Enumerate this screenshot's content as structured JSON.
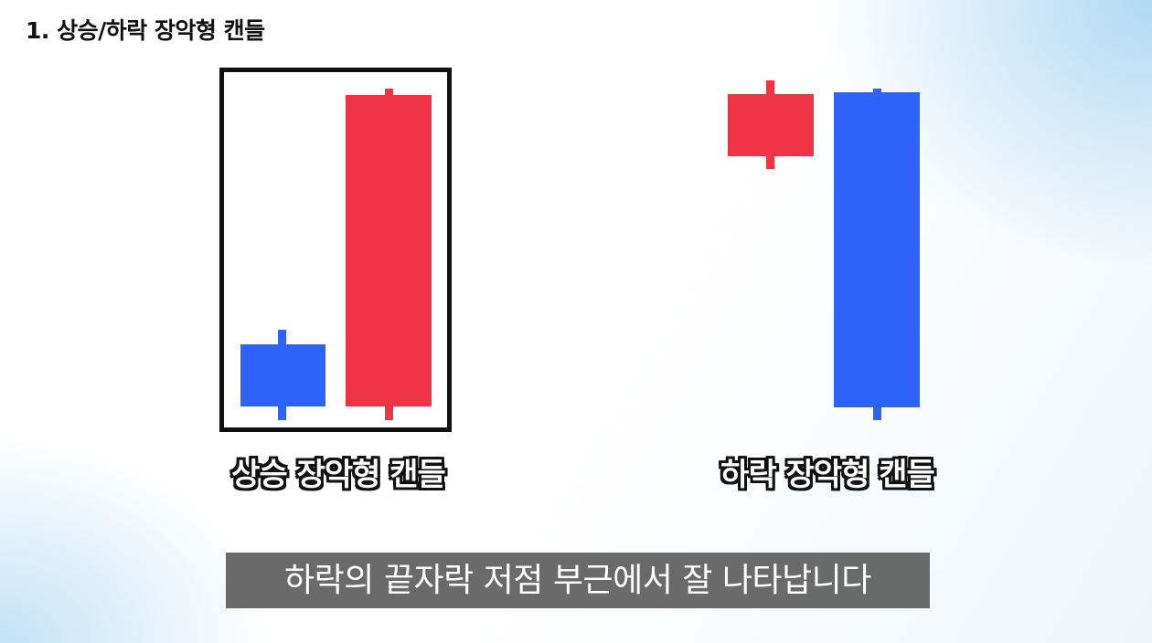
{
  "header": {
    "title": "1. 상승/하락 장악형 캔들"
  },
  "colors": {
    "bullish": "#ee3445",
    "bearish": "#2d63fb"
  },
  "patterns": [
    {
      "caption": "상승 장악형 캔들",
      "candles": [
        {
          "color": "bearish"
        },
        {
          "color": "bullish"
        }
      ]
    },
    {
      "caption": "하락 장악형 캔들",
      "candles": [
        {
          "color": "bullish"
        },
        {
          "color": "bearish"
        }
      ]
    }
  ],
  "subtitle": {
    "text": "하락의 끝자락 저점 부근에서 잘 나타납니다"
  }
}
